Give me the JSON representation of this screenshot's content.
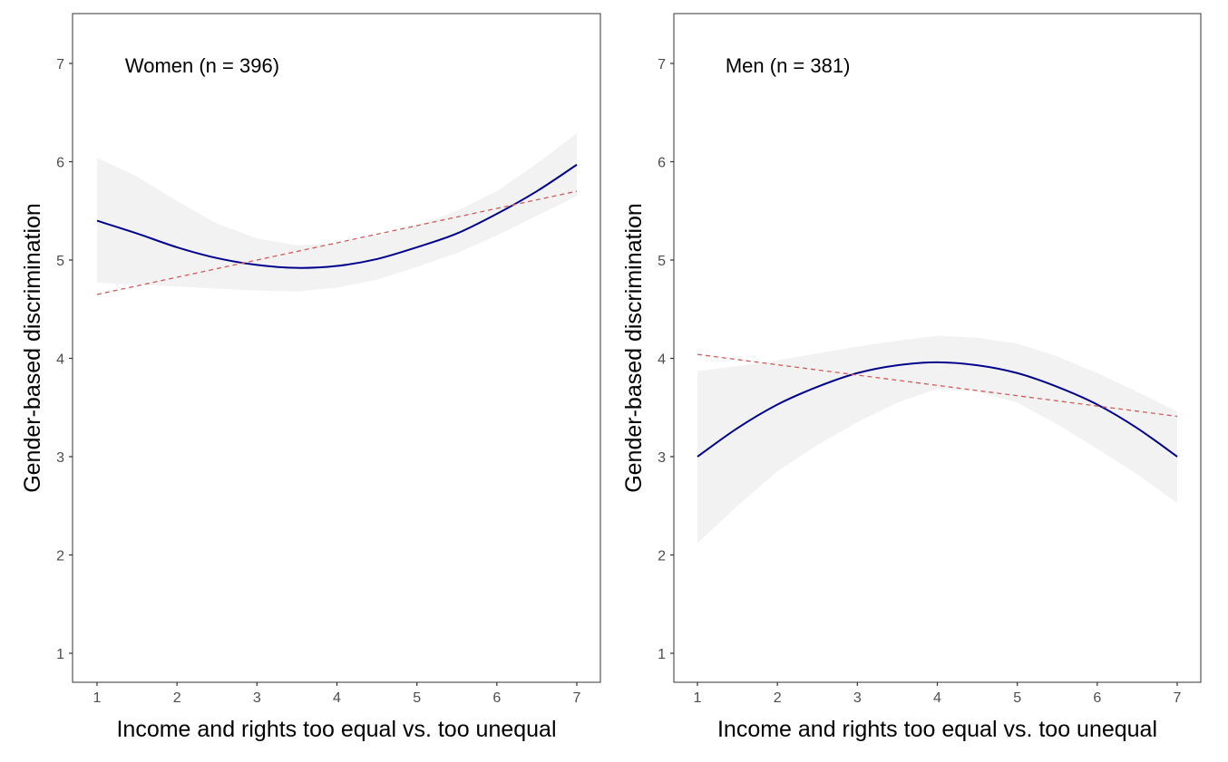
{
  "chart_data": [
    {
      "type": "line",
      "annotation": "Women (n = 396)",
      "xlabel": "Income and rights too equal vs. too unequal",
      "ylabel": "Gender-based discrimination",
      "xlim": [
        1,
        7
      ],
      "ylim": [
        1,
        7
      ],
      "xticks": [
        "1",
        "2",
        "3",
        "4",
        "5",
        "6",
        "7"
      ],
      "yticks": [
        "1",
        "2",
        "3",
        "4",
        "5",
        "6",
        "7"
      ],
      "grid": false,
      "x": [
        1,
        1.5,
        2,
        2.5,
        3,
        3.5,
        4,
        4.5,
        5,
        5.5,
        6,
        6.5,
        7
      ],
      "series": [
        {
          "kind": "quadratic",
          "color": "#00008b",
          "values": [
            5.4,
            5.27,
            5.13,
            5.02,
            4.95,
            4.92,
            4.94,
            5.01,
            5.13,
            5.27,
            5.47,
            5.7,
            5.97
          ]
        },
        {
          "kind": "linear",
          "color": "#cd5c5c",
          "dashed": true,
          "values": [
            4.65,
            4.74,
            4.83,
            4.91,
            5.0,
            5.09,
            5.18,
            5.26,
            5.35,
            5.44,
            5.53,
            5.61,
            5.7
          ]
        }
      ],
      "band": {
        "color": "#f2f2f2",
        "upper": [
          6.04,
          5.85,
          5.6,
          5.37,
          5.22,
          5.15,
          5.17,
          5.24,
          5.35,
          5.5,
          5.7,
          5.98,
          6.29
        ],
        "lower": [
          4.77,
          4.75,
          4.73,
          4.71,
          4.69,
          4.68,
          4.72,
          4.8,
          4.93,
          5.07,
          5.25,
          5.45,
          5.65
        ]
      }
    },
    {
      "type": "line",
      "annotation": "Men (n = 381)",
      "xlabel": "Income and rights too equal vs. too unequal",
      "ylabel": "Gender-based discrimination",
      "xlim": [
        1,
        7
      ],
      "ylim": [
        1,
        7
      ],
      "xticks": [
        "1",
        "2",
        "3",
        "4",
        "5",
        "6",
        "7"
      ],
      "yticks": [
        "1",
        "2",
        "3",
        "4",
        "5",
        "6",
        "7"
      ],
      "grid": false,
      "x": [
        1,
        1.5,
        2,
        2.5,
        3,
        3.5,
        4,
        4.5,
        5,
        5.5,
        6,
        6.5,
        7
      ],
      "series": [
        {
          "kind": "quadratic",
          "color": "#00008b",
          "values": [
            3.0,
            3.29,
            3.53,
            3.71,
            3.85,
            3.93,
            3.96,
            3.93,
            3.85,
            3.71,
            3.53,
            3.29,
            3.0
          ]
        },
        {
          "kind": "linear",
          "color": "#cd5c5c",
          "dashed": true,
          "values": [
            4.04,
            3.99,
            3.93,
            3.88,
            3.83,
            3.78,
            3.72,
            3.67,
            3.62,
            3.57,
            3.51,
            3.46,
            3.41
          ]
        }
      ],
      "band": {
        "color": "#f2f2f2",
        "upper": [
          3.87,
          3.92,
          3.98,
          4.05,
          4.12,
          4.18,
          4.23,
          4.21,
          4.15,
          4.02,
          3.85,
          3.66,
          3.46
        ],
        "lower": [
          2.12,
          2.5,
          2.85,
          3.12,
          3.35,
          3.55,
          3.69,
          3.66,
          3.55,
          3.33,
          3.08,
          2.82,
          2.53
        ]
      }
    }
  ]
}
